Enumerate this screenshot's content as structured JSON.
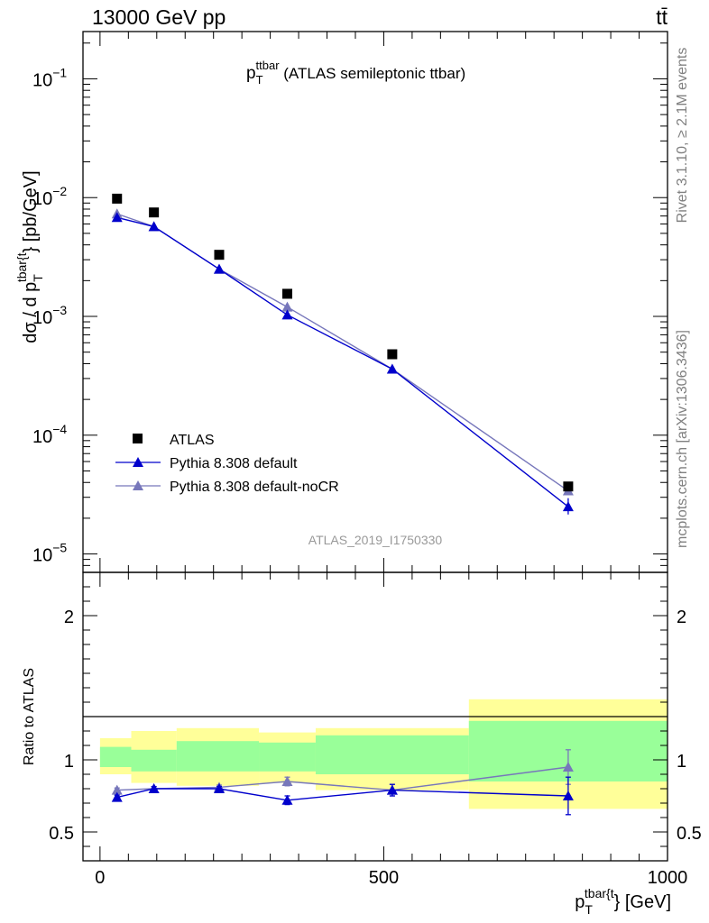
{
  "header": {
    "left": "13000 GeV pp",
    "right": "tt̄"
  },
  "side_labels": {
    "rivet": "Rivet 3.1.10, ≥ 2.1M events",
    "mcplots": "mcplots.cern.ch [arXiv:1306.3436]"
  },
  "colors": {
    "atlas": "#000000",
    "pythia_default": "#0000cc",
    "pythia_nocr": "#7777bb",
    "band_inner": "#99ff99",
    "band_outer": "#ffff99"
  },
  "chart_data": [
    {
      "type": "scatter",
      "title": {
        "main": "p",
        "sub": "T",
        "sup": "ttbar",
        "rest": " (ATLAS semileptonic ttbar)"
      },
      "analysis_label": "ATLAS_2019_I1750330",
      "ylabel": {
        "pre": "dσ / d p",
        "sub": "T",
        "sup": "tbar{t",
        "post": "} [pb/GeV]"
      },
      "y_scale": "log",
      "ylim": [
        7e-06,
        0.25
      ],
      "xlim": [
        -30,
        1000
      ],
      "y_ticks": [
        {
          "value": 0.1,
          "base": "10",
          "exp": "−1"
        },
        {
          "value": 0.01,
          "base": "10",
          "exp": "−2"
        },
        {
          "value": 0.001,
          "base": "10",
          "exp": "−3"
        },
        {
          "value": 0.0001,
          "base": "10",
          "exp": "−4"
        },
        {
          "value": 1e-05,
          "base": "10",
          "exp": "−5"
        }
      ],
      "legend_position": "bottom-left",
      "series": [
        {
          "name": "ATLAS",
          "marker": "square",
          "x": [
            30,
            95,
            210,
            330,
            515,
            825
          ],
          "y": [
            0.0098,
            0.0075,
            0.0033,
            0.00155,
            0.00048,
            3.7e-05
          ]
        },
        {
          "name": "Pythia 8.308 default",
          "marker": "triangle",
          "x": [
            30,
            95,
            210,
            330,
            515,
            825
          ],
          "y": [
            0.0068,
            0.0057,
            0.0025,
            0.00103,
            0.00036,
            2.5e-05
          ]
        },
        {
          "name": "Pythia 8.308 default-noCR",
          "marker": "triangle",
          "x": [
            30,
            95,
            210,
            330,
            515,
            825
          ],
          "y": [
            0.0073,
            0.0057,
            0.0025,
            0.0012,
            0.00036,
            3.4e-05
          ]
        }
      ]
    },
    {
      "type": "line",
      "ylabel": "Ratio to ATLAS",
      "xlabel": {
        "pre": "p",
        "sub": "T",
        "sup": "tbar{t",
        "post": "} [GeV]"
      },
      "xlim": [
        -30,
        1000
      ],
      "ylim": [
        0.3,
        2.3
      ],
      "x_ticks": [
        "0",
        "500",
        "1000"
      ],
      "y_ticks": [
        "0.5",
        "1",
        "2"
      ],
      "bins": [
        [
          0,
          55
        ],
        [
          55,
          135
        ],
        [
          135,
          280
        ],
        [
          280,
          380
        ],
        [
          380,
          650
        ],
        [
          650,
          1000
        ]
      ],
      "band_inner": [
        [
          0.95,
          1.09
        ],
        [
          0.92,
          1.07
        ],
        [
          0.92,
          1.13
        ],
        [
          0.92,
          1.12
        ],
        [
          0.9,
          1.17
        ],
        [
          0.85,
          1.27
        ]
      ],
      "band_outer": [
        [
          0.9,
          1.15
        ],
        [
          0.84,
          1.2
        ],
        [
          0.82,
          1.22
        ],
        [
          0.84,
          1.19
        ],
        [
          0.79,
          1.22
        ],
        [
          0.66,
          1.42
        ]
      ],
      "series": [
        {
          "name": "Pythia 8.308 default",
          "x": [
            30,
            95,
            210,
            330,
            515,
            825
          ],
          "y": [
            0.74,
            0.8,
            0.8,
            0.72,
            0.79,
            0.75
          ],
          "err": [
            0.015,
            0.015,
            0.015,
            0.03,
            0.04,
            0.13
          ]
        },
        {
          "name": "Pythia 8.308 default-noCR",
          "x": [
            30,
            95,
            210,
            330,
            515,
            825
          ],
          "y": [
            0.79,
            0.8,
            0.81,
            0.85,
            0.79,
            0.95
          ],
          "err": [
            0.015,
            0.015,
            0.015,
            0.03,
            0.04,
            0.12
          ]
        }
      ]
    }
  ]
}
